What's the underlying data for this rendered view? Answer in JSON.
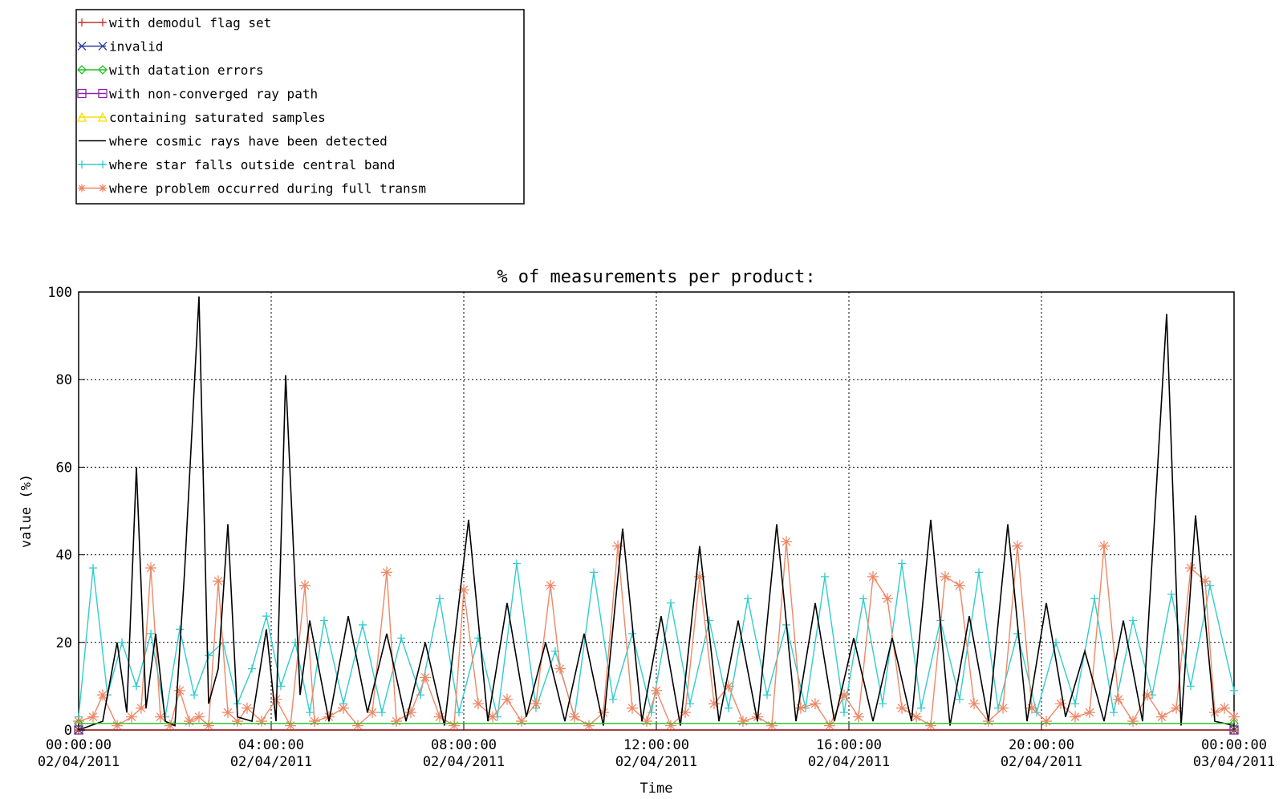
{
  "chart_data": {
    "type": "line",
    "title": "% of measurements per product:",
    "xlabel": "Time",
    "ylabel": "value (%)",
    "ylim": [
      0,
      100
    ],
    "yticks": [
      0,
      20,
      40,
      60,
      80,
      100
    ],
    "xlim": [
      "02/04/2011 00:00:00",
      "03/04/2011 00:00:00"
    ],
    "xticks": [
      {
        "time": "00:00:00",
        "date": "02/04/2011"
      },
      {
        "time": "04:00:00",
        "date": "02/04/2011"
      },
      {
        "time": "08:00:00",
        "date": "02/04/2011"
      },
      {
        "time": "12:00:00",
        "date": "02/04/2011"
      },
      {
        "time": "16:00:00",
        "date": "02/04/2011"
      },
      {
        "time": "20:00:00",
        "date": "02/04/2011"
      },
      {
        "time": "00:00:00",
        "date": "03/04/2011"
      }
    ],
    "grid": true,
    "legend_position": "top-left, above plot",
    "series": [
      {
        "name": "with demodul flag set",
        "color": "#c0392b",
        "marker": "plus",
        "x": [
          0,
          24
        ],
        "y": [
          0,
          0
        ]
      },
      {
        "name": "invalid",
        "color": "#2c3e9e",
        "marker": "x",
        "x": [
          0,
          24
        ],
        "y": [
          0,
          0
        ]
      },
      {
        "name": "with datation errors",
        "color": "#22c022",
        "marker": "diamond",
        "x": [
          0,
          24
        ],
        "y": [
          1.5,
          1.5
        ]
      },
      {
        "name": "with non-converged ray path",
        "color": "#8e24aa",
        "marker": "square",
        "x": [
          0,
          24
        ],
        "y": [
          0,
          0
        ]
      },
      {
        "name": "containing saturated samples",
        "color": "#f5e000",
        "marker": "triangle",
        "x": [
          0,
          24
        ],
        "y": [
          0,
          0
        ]
      },
      {
        "name": "where cosmic rays have been detected",
        "color": "#000000",
        "marker": "none",
        "x": [
          0,
          0.5,
          0.8,
          1.0,
          1.2,
          1.4,
          1.6,
          1.8,
          2.0,
          2.2,
          2.5,
          2.7,
          2.9,
          3.1,
          3.3,
          3.6,
          3.9,
          4.1,
          4.3,
          4.6,
          4.8,
          5.2,
          5.6,
          6.0,
          6.4,
          6.8,
          7.2,
          7.6,
          8.1,
          8.5,
          8.9,
          9.3,
          9.7,
          10.1,
          10.5,
          10.9,
          11.3,
          11.7,
          12.1,
          12.5,
          12.9,
          13.3,
          13.7,
          14.1,
          14.5,
          14.9,
          15.3,
          15.7,
          16.1,
          16.5,
          16.9,
          17.3,
          17.7,
          18.1,
          18.5,
          18.9,
          19.3,
          19.7,
          20.1,
          20.5,
          20.9,
          21.3,
          21.7,
          22.1,
          22.6,
          22.9,
          23.2,
          23.6,
          24
        ],
        "y": [
          0,
          2,
          20,
          4,
          60,
          5,
          22,
          2,
          1,
          36,
          99,
          6,
          14,
          47,
          3,
          2,
          23,
          2,
          81,
          8,
          25,
          2,
          26,
          4,
          22,
          2,
          20,
          1,
          48,
          2,
          29,
          3,
          20,
          2,
          22,
          1,
          46,
          2,
          26,
          1,
          42,
          2,
          25,
          2,
          47,
          2,
          29,
          2,
          21,
          2,
          21,
          2,
          48,
          1,
          26,
          2,
          47,
          2,
          29,
          3,
          18,
          2,
          25,
          2,
          95,
          1,
          49,
          2,
          1
        ]
      },
      {
        "name": "where star falls outside central band",
        "color": "#33cccc",
        "marker": "plus",
        "x": [
          0,
          0.3,
          0.6,
          0.9,
          1.2,
          1.5,
          1.8,
          2.1,
          2.4,
          2.7,
          3.0,
          3.3,
          3.6,
          3.9,
          4.2,
          4.5,
          4.8,
          5.1,
          5.5,
          5.9,
          6.3,
          6.7,
          7.1,
          7.5,
          7.9,
          8.3,
          8.7,
          9.1,
          9.5,
          9.9,
          10.3,
          10.7,
          11.1,
          11.5,
          11.9,
          12.3,
          12.7,
          13.1,
          13.5,
          13.9,
          14.3,
          14.7,
          15.1,
          15.5,
          15.9,
          16.3,
          16.7,
          17.1,
          17.5,
          17.9,
          18.3,
          18.7,
          19.1,
          19.5,
          19.9,
          20.3,
          20.7,
          21.1,
          21.5,
          21.9,
          22.3,
          22.7,
          23.1,
          23.5,
          24
        ],
        "y": [
          3,
          37,
          8,
          20,
          10,
          22,
          3,
          23,
          8,
          17,
          20,
          6,
          14,
          26,
          10,
          20,
          4,
          25,
          6,
          24,
          4,
          21,
          8,
          30,
          4,
          21,
          3,
          38,
          5,
          18,
          3,
          36,
          7,
          22,
          4,
          29,
          6,
          25,
          5,
          30,
          8,
          24,
          5,
          35,
          4,
          30,
          6,
          38,
          5,
          25,
          7,
          36,
          5,
          22,
          4,
          20,
          6,
          30,
          4,
          25,
          8,
          31,
          10,
          33,
          9
        ]
      },
      {
        "name": "where problem occurred during full transm",
        "color": "#ee8866",
        "marker": "asterisk",
        "x": [
          0,
          0.3,
          0.5,
          0.8,
          1.1,
          1.3,
          1.5,
          1.7,
          1.9,
          2.1,
          2.3,
          2.5,
          2.7,
          2.9,
          3.1,
          3.3,
          3.5,
          3.8,
          4.1,
          4.4,
          4.7,
          4.9,
          5.2,
          5.5,
          5.8,
          6.1,
          6.4,
          6.6,
          6.9,
          7.2,
          7.5,
          7.8,
          8.0,
          8.3,
          8.6,
          8.9,
          9.2,
          9.5,
          9.8,
          10.0,
          10.3,
          10.6,
          10.9,
          11.2,
          11.5,
          11.8,
          12.0,
          12.3,
          12.6,
          12.9,
          13.2,
          13.5,
          13.8,
          14.1,
          14.4,
          14.7,
          15.0,
          15.3,
          15.6,
          15.9,
          16.2,
          16.5,
          16.8,
          17.1,
          17.4,
          17.7,
          18.0,
          18.3,
          18.6,
          18.9,
          19.2,
          19.5,
          19.8,
          20.1,
          20.4,
          20.7,
          21.0,
          21.3,
          21.6,
          21.9,
          22.2,
          22.5,
          22.8,
          23.1,
          23.4,
          23.6,
          23.8,
          24
        ],
        "y": [
          2,
          3,
          8,
          1,
          3,
          5,
          37,
          3,
          1,
          9,
          2,
          3,
          1,
          34,
          4,
          2,
          5,
          2,
          7,
          1,
          33,
          2,
          3,
          5,
          1,
          4,
          36,
          2,
          4,
          12,
          3,
          1,
          32,
          6,
          3,
          7,
          2,
          6,
          33,
          14,
          3,
          1,
          4,
          42,
          5,
          2,
          9,
          1,
          4,
          35,
          6,
          10,
          2,
          3,
          1,
          43,
          5,
          6,
          1,
          8,
          3,
          35,
          30,
          5,
          3,
          1,
          35,
          33,
          6,
          2,
          5,
          42,
          5,
          2,
          6,
          3,
          4,
          42,
          7,
          2,
          8,
          3,
          5,
          37,
          34,
          4,
          5,
          3
        ]
      }
    ]
  }
}
